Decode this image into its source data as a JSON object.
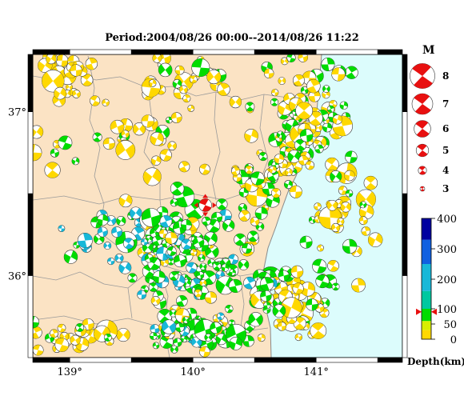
{
  "title": "Period:2004/08/26 00:00--2014/08/26 11:22",
  "map": {
    "lon_ticks": [
      {
        "value": 139,
        "label": "139°"
      },
      {
        "value": 140,
        "label": "140°"
      },
      {
        "value": 141,
        "label": "141°"
      }
    ],
    "lat_ticks": [
      {
        "value": 37,
        "label": "37°"
      },
      {
        "value": 36,
        "label": "36°"
      }
    ],
    "lon_range": [
      138.7,
      141.7
    ],
    "lat_range": [
      35.5,
      37.35
    ],
    "colors": {
      "land": "#fbe3c4",
      "sea": "#dcfcfc",
      "border": "#8a8a8a",
      "frame": "#000000"
    },
    "main_event": {
      "lon": 140.1,
      "lat": 36.43,
      "color": "#e81010"
    }
  },
  "magnitude_legend": {
    "title": "M",
    "items": [
      {
        "label": "8",
        "magnitude": 8
      },
      {
        "label": "7",
        "magnitude": 7
      },
      {
        "label": "6",
        "magnitude": 6
      },
      {
        "label": "5",
        "magnitude": 5
      },
      {
        "label": "4",
        "magnitude": 4
      },
      {
        "label": "3",
        "magnitude": 3
      }
    ],
    "color": "#e81010"
  },
  "depth_scale": {
    "title": "Depth(km)",
    "ticks": [
      "400",
      "300",
      "200",
      "100",
      "50",
      "0"
    ],
    "tick_values": [
      400,
      300,
      200,
      100,
      50,
      0
    ],
    "bands": [
      {
        "from": 0,
        "to": 30,
        "color": "#ffd800"
      },
      {
        "from": 30,
        "to": 60,
        "color": "#d8ee00"
      },
      {
        "from": 60,
        "to": 100,
        "color": "#00dc00"
      },
      {
        "from": 100,
        "to": 160,
        "color": "#00c8a0"
      },
      {
        "from": 160,
        "to": 250,
        "color": "#18b8d8"
      },
      {
        "from": 250,
        "to": 330,
        "color": "#1060e0"
      },
      {
        "from": 330,
        "to": 400,
        "color": "#0000a0"
      }
    ],
    "marker_depth": 90,
    "marker_color": "#e81010"
  },
  "event_colors": {
    "shallow": "#ffd800",
    "mid": "#00dc00",
    "deep": "#18b8d8"
  }
}
